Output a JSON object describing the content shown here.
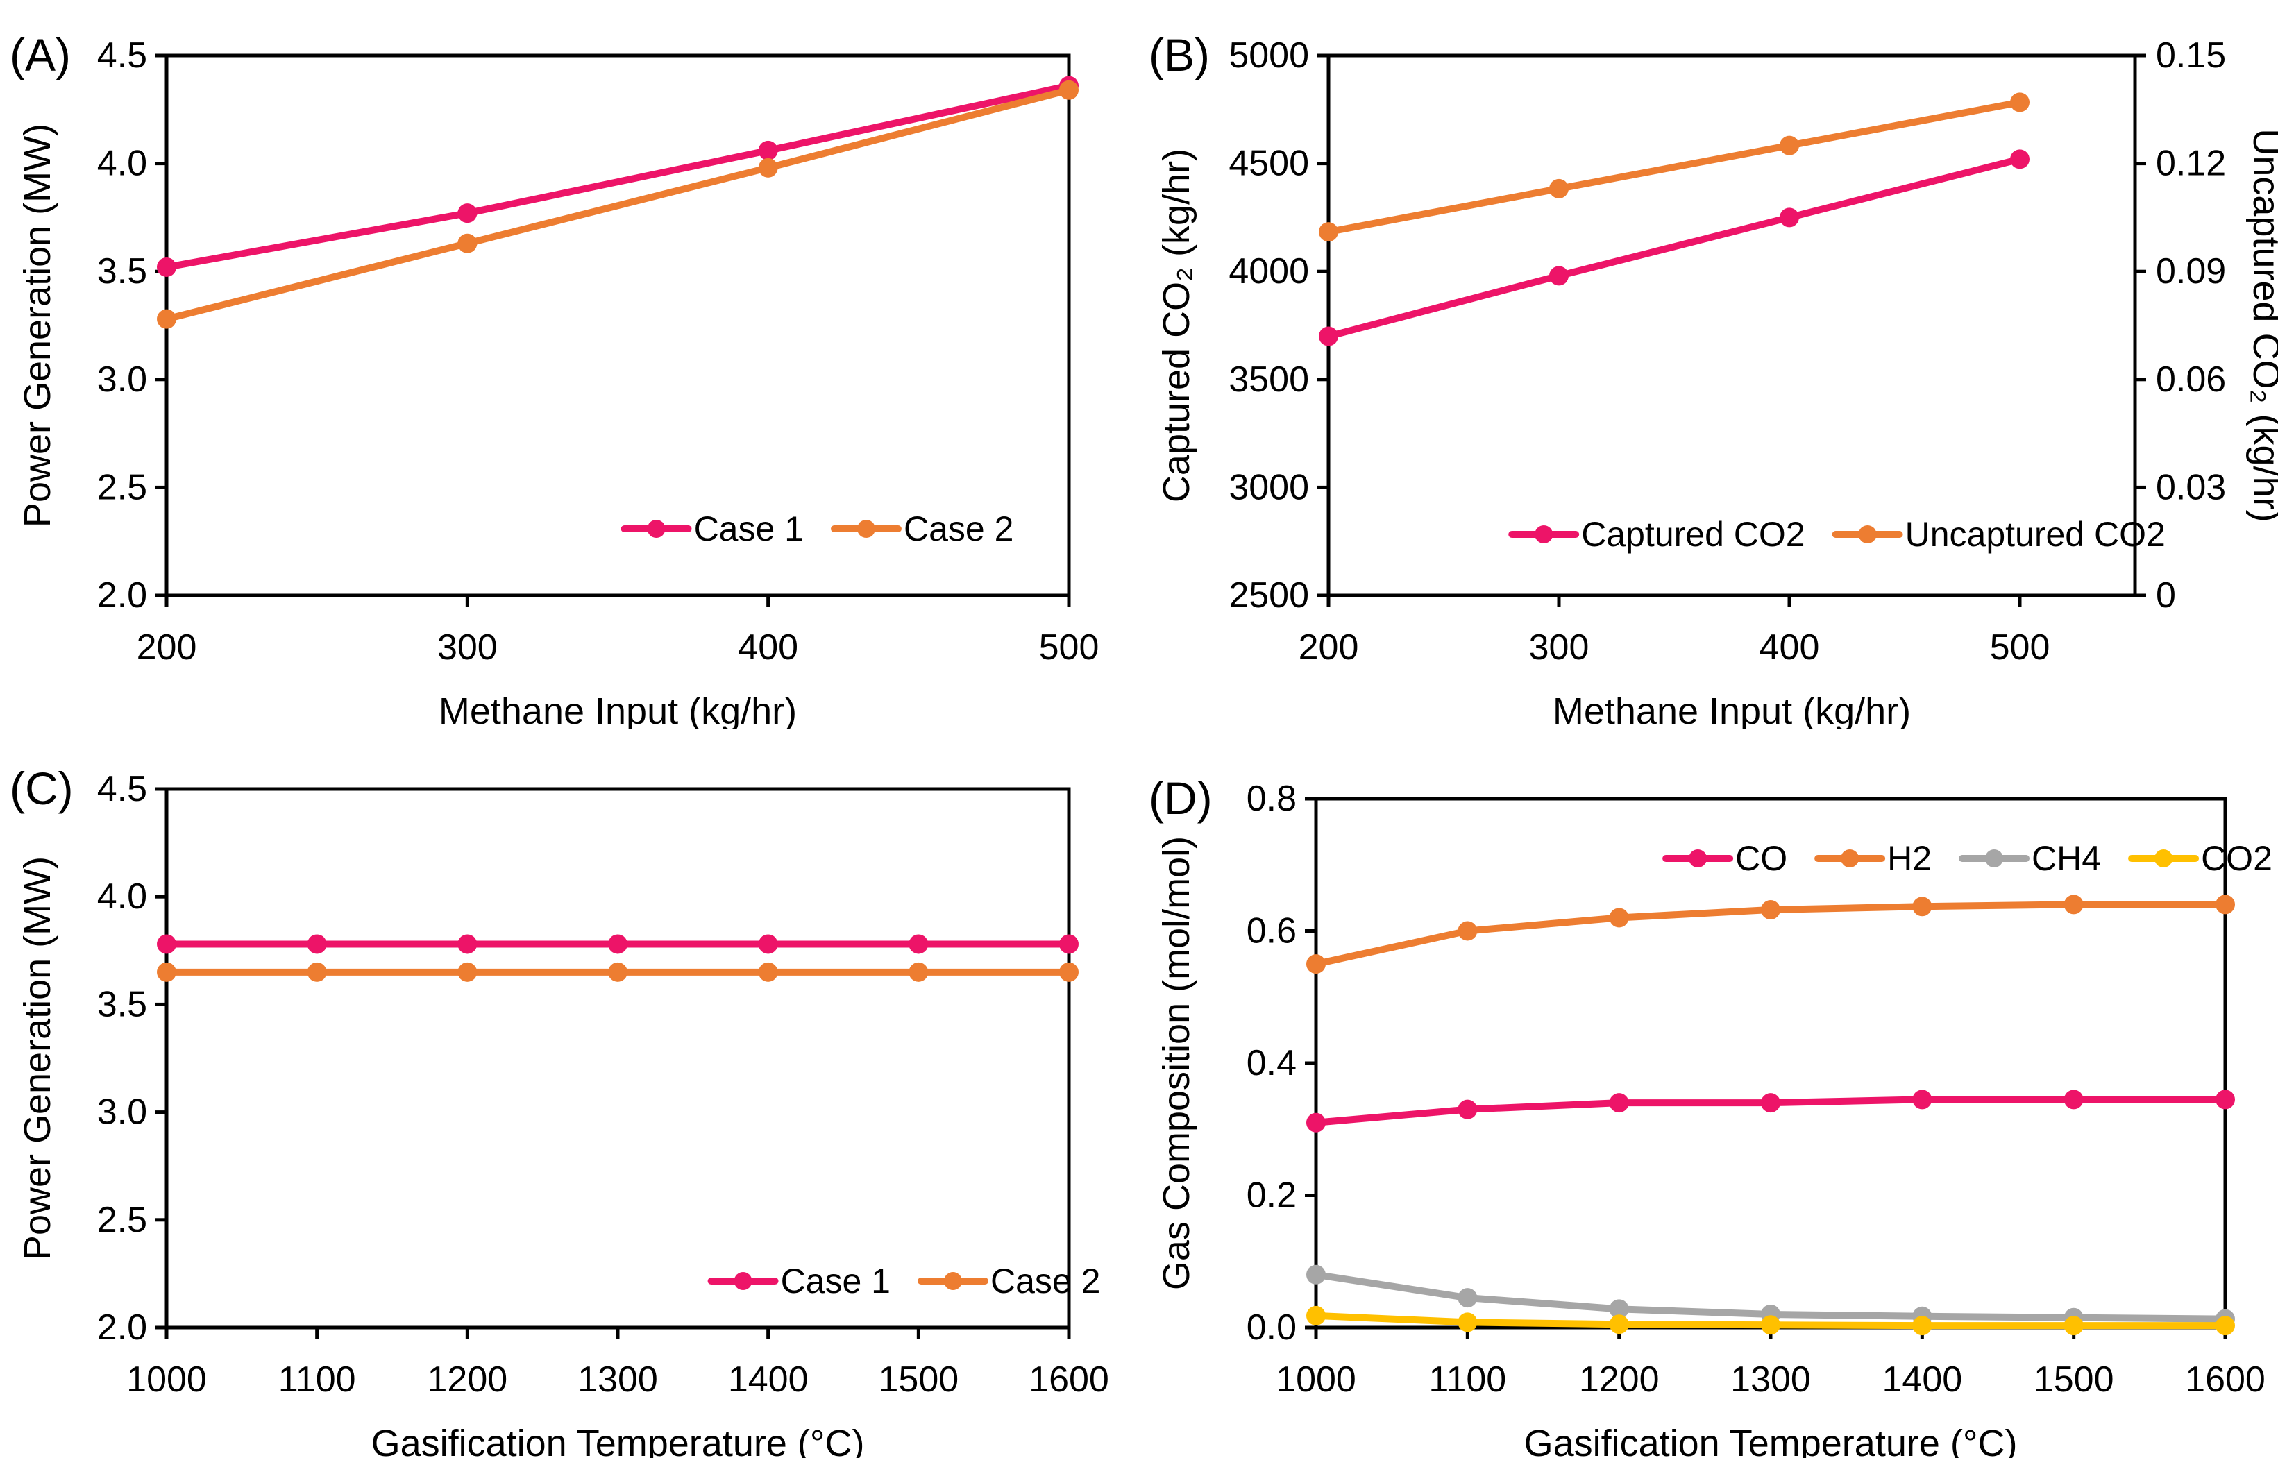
{
  "figure": {
    "background": "#ffffff",
    "description_texts": {
      "panel_a_label": "(A)",
      "panel_b_label": "(B)",
      "panel_c_label": "(C)",
      "panel_d_label": "(D)"
    }
  },
  "colors": {
    "pink": "#ED1468",
    "orange": "#ED7D31",
    "gray": "#A6A6A6",
    "yellow": "#FFC000",
    "axis": "#000000"
  },
  "chart_data": [
    {
      "id": "A",
      "type": "line",
      "panel_label": "(A)",
      "xlabel": "Methane Input (kg/hr)",
      "ylabel": "Power Generation (MW)",
      "xlim": [
        200,
        500
      ],
      "ylim": [
        2.0,
        4.5
      ],
      "grid": false,
      "legend_position": "inside-bottom-right",
      "xticks": [
        {
          "v": 200,
          "label": "200"
        },
        {
          "v": 300,
          "label": "300"
        },
        {
          "v": 400,
          "label": "400"
        },
        {
          "v": 500,
          "label": "500"
        }
      ],
      "yticks": [
        {
          "v": 4.5,
          "label": "4.5"
        },
        {
          "v": 4.0,
          "label": "4.0"
        },
        {
          "v": 3.5,
          "label": "3.5"
        },
        {
          "v": 3.0,
          "label": "3.0"
        },
        {
          "v": 2.5,
          "label": "2.5"
        },
        {
          "v": 2.0,
          "label": "2.0"
        }
      ],
      "x": [
        200,
        300,
        400,
        500
      ],
      "series": [
        {
          "name": "Case 1",
          "color": "#ED1468",
          "axis": "left",
          "values": [
            3.52,
            3.77,
            4.06,
            4.36
          ]
        },
        {
          "name": "Case 2",
          "color": "#ED7D31",
          "axis": "left",
          "values": [
            3.28,
            3.63,
            3.98,
            4.34
          ]
        }
      ]
    },
    {
      "id": "B",
      "type": "line",
      "panel_label": "(B)",
      "xlabel": "Methane Input (kg/hr)",
      "ylabel": "Captured CO₂ (kg/hr)",
      "ylabel_right": "Uncaptured CO₂ (kg/hr)",
      "xlim": [
        200,
        550
      ],
      "ylim": [
        2500,
        5000
      ],
      "ylim_right": [
        0,
        0.15
      ],
      "grid": false,
      "legend_position": "inside-bottom-right",
      "xticks": [
        {
          "v": 200,
          "label": "200"
        },
        {
          "v": 300,
          "label": "300"
        },
        {
          "v": 400,
          "label": "400"
        },
        {
          "v": 500,
          "label": "500"
        }
      ],
      "yticks": [
        {
          "v": 5000,
          "label": "5000"
        },
        {
          "v": 4500,
          "label": "4500"
        },
        {
          "v": 4000,
          "label": "4000"
        },
        {
          "v": 3500,
          "label": "3500"
        },
        {
          "v": 3000,
          "label": "3000"
        },
        {
          "v": 2500,
          "label": "2500"
        }
      ],
      "yticks_right": [
        {
          "v": 0.15,
          "label": "0.15"
        },
        {
          "v": 0.12,
          "label": "0.12"
        },
        {
          "v": 0.09,
          "label": "0.09"
        },
        {
          "v": 0.06,
          "label": "0.06"
        },
        {
          "v": 0.03,
          "label": "0.03"
        },
        {
          "v": 0,
          "label": "0"
        }
      ],
      "x": [
        200,
        300,
        400,
        500
      ],
      "series": [
        {
          "name": "Captured CO2",
          "color": "#ED1468",
          "axis": "left",
          "values": [
            3700,
            3980,
            4250,
            4520
          ]
        },
        {
          "name": "Uncaptured CO2",
          "color": "#ED7D31",
          "axis": "right",
          "values": [
            0.101,
            0.113,
            0.125,
            0.137
          ]
        }
      ]
    },
    {
      "id": "C",
      "type": "line",
      "panel_label": "(C)",
      "xlabel": "Gasification Temperature (°C)",
      "ylabel": "Power Generation (MW)",
      "xlim": [
        1000,
        1600
      ],
      "ylim": [
        2.0,
        4.5
      ],
      "grid": false,
      "legend_position": "inside-bottom-right",
      "xticks": [
        {
          "v": 1000,
          "label": "1000"
        },
        {
          "v": 1100,
          "label": "1100"
        },
        {
          "v": 1200,
          "label": "1200"
        },
        {
          "v": 1300,
          "label": "1300"
        },
        {
          "v": 1400,
          "label": "1400"
        },
        {
          "v": 1500,
          "label": "1500"
        },
        {
          "v": 1600,
          "label": "1600"
        }
      ],
      "yticks": [
        {
          "v": 4.5,
          "label": "4.5"
        },
        {
          "v": 4.0,
          "label": "4.0"
        },
        {
          "v": 3.5,
          "label": "3.5"
        },
        {
          "v": 3.0,
          "label": "3.0"
        },
        {
          "v": 2.5,
          "label": "2.5"
        },
        {
          "v": 2.0,
          "label": "2.0"
        }
      ],
      "x": [
        1000,
        1100,
        1200,
        1300,
        1400,
        1500,
        1600
      ],
      "series": [
        {
          "name": "Case 1",
          "color": "#ED1468",
          "axis": "left",
          "values": [
            3.78,
            3.78,
            3.78,
            3.78,
            3.78,
            3.78,
            3.78
          ]
        },
        {
          "name": "Case 2",
          "color": "#ED7D31",
          "axis": "left",
          "values": [
            3.65,
            3.65,
            3.65,
            3.65,
            3.65,
            3.65,
            3.65
          ]
        }
      ]
    },
    {
      "id": "D",
      "type": "line",
      "panel_label": "(D)",
      "xlabel": "Gasification Temperature (°C)",
      "ylabel": "Gas Composition (mol/mol)",
      "xlim": [
        1000,
        1600
      ],
      "ylim": [
        0,
        0.8
      ],
      "grid": false,
      "legend_position": "inside-top-right",
      "xticks": [
        {
          "v": 1000,
          "label": "1000"
        },
        {
          "v": 1100,
          "label": "1100"
        },
        {
          "v": 1200,
          "label": "1200"
        },
        {
          "v": 1300,
          "label": "1300"
        },
        {
          "v": 1400,
          "label": "1400"
        },
        {
          "v": 1500,
          "label": "1500"
        },
        {
          "v": 1600,
          "label": "1600"
        }
      ],
      "yticks": [
        {
          "v": 0.8,
          "label": "0.8"
        },
        {
          "v": 0.6,
          "label": "0.6"
        },
        {
          "v": 0.4,
          "label": "0.4"
        },
        {
          "v": 0.2,
          "label": "0.2"
        },
        {
          "v": 0.0,
          "label": "0.0"
        }
      ],
      "x": [
        1000,
        1100,
        1200,
        1300,
        1400,
        1500,
        1600
      ],
      "series": [
        {
          "name": "CO",
          "color": "#ED1468",
          "axis": "left",
          "values": [
            0.31,
            0.33,
            0.34,
            0.34,
            0.345,
            0.345,
            0.345
          ]
        },
        {
          "name": "H2",
          "color": "#ED7D31",
          "axis": "left",
          "values": [
            0.55,
            0.6,
            0.62,
            0.632,
            0.637,
            0.64,
            0.64
          ]
        },
        {
          "name": "CH4",
          "color": "#A6A6A6",
          "axis": "left",
          "values": [
            0.08,
            0.045,
            0.028,
            0.02,
            0.017,
            0.015,
            0.013
          ]
        },
        {
          "name": "CO2",
          "color": "#FFC000",
          "axis": "left",
          "values": [
            0.018,
            0.008,
            0.005,
            0.004,
            0.003,
            0.003,
            0.003
          ]
        }
      ]
    }
  ]
}
